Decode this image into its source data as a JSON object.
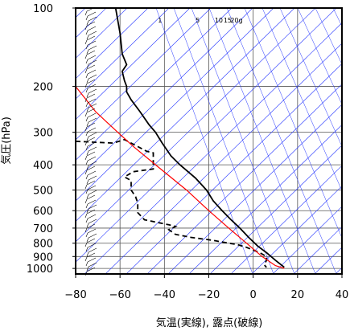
{
  "chart_data": {
    "type": "line",
    "title": "",
    "xlabel": "気温(実線), 露点(破線)",
    "ylabel": "気圧(hPa)",
    "xlim": [
      -80,
      40
    ],
    "ylim": [
      1050,
      100
    ],
    "y_scale": "log",
    "x_ticks": [
      -80,
      -60,
      -40,
      -20,
      0,
      20,
      40
    ],
    "x_tick_labels": [
      "−80",
      "−60",
      "−40",
      "−20",
      "0",
      "20",
      "40"
    ],
    "y_ticks": [
      100,
      200,
      300,
      400,
      500,
      600,
      700,
      800,
      900,
      1000
    ],
    "y_tick_labels": [
      "100",
      "200",
      "300",
      "400",
      "500",
      "600",
      "700",
      "800",
      "900",
      "1000"
    ],
    "mixing_ratio_labels": [
      {
        "text": "1",
        "x": -42
      },
      {
        "text": "5",
        "x": -25
      },
      {
        "text": "10",
        "x": -15.5
      },
      {
        "text": "15",
        "x": -11.5
      },
      {
        "text": "20g",
        "x": -7.5
      }
    ],
    "grid": true,
    "series": [
      {
        "style": "solid",
        "color": "#000000",
        "points": [
          [
            -62,
            100
          ],
          [
            -60,
            125
          ],
          [
            -59,
            150
          ],
          [
            -57,
            165
          ],
          [
            -59,
            175
          ],
          [
            -58,
            190
          ],
          [
            -57,
            200
          ],
          [
            -57,
            210
          ],
          [
            -55,
            225
          ],
          [
            -51,
            250
          ],
          [
            -47,
            280
          ],
          [
            -44,
            300
          ],
          [
            -41,
            330
          ],
          [
            -37,
            370
          ],
          [
            -33,
            400
          ],
          [
            -26,
            450
          ],
          [
            -21,
            500
          ],
          [
            -18,
            550
          ],
          [
            -14,
            600
          ],
          [
            -10,
            650
          ],
          [
            -6,
            700
          ],
          [
            -2,
            760
          ],
          [
            2,
            820
          ],
          [
            6,
            870
          ],
          [
            10,
            930
          ],
          [
            14,
            990
          ]
        ]
      },
      {
        "style": "dashed",
        "color": "#000000",
        "points": [
          [
            -80,
            325
          ],
          [
            -63,
            330
          ],
          [
            -58,
            320
          ],
          [
            -48,
            355
          ],
          [
            -45,
            360
          ],
          [
            -45,
            415
          ],
          [
            -54,
            425
          ],
          [
            -56,
            435
          ],
          [
            -58,
            445
          ],
          [
            -55,
            460
          ],
          [
            -55,
            500
          ],
          [
            -53,
            530
          ],
          [
            -52,
            560
          ],
          [
            -52,
            610
          ],
          [
            -49,
            650
          ],
          [
            -38,
            680
          ],
          [
            -35,
            690
          ],
          [
            -38,
            710
          ],
          [
            -35,
            740
          ],
          [
            -28,
            760
          ],
          [
            -18,
            780
          ],
          [
            -11,
            800
          ],
          [
            -7,
            810
          ],
          [
            -3,
            830
          ],
          [
            3,
            870
          ],
          [
            6,
            900
          ],
          [
            6,
            930
          ],
          [
            5,
            970
          ],
          [
            6,
            990
          ]
        ]
      },
      {
        "style": "solid",
        "color": "#ff0000",
        "points": [
          [
            -80,
            200
          ],
          [
            -71,
            250
          ],
          [
            -61,
            300
          ],
          [
            -54,
            340
          ],
          [
            -44,
            400
          ],
          [
            -30,
            500
          ],
          [
            -20,
            600
          ],
          [
            -11,
            700
          ],
          [
            -3,
            800
          ],
          [
            4,
            900
          ],
          [
            10,
            975
          ],
          [
            14,
            1000
          ]
        ]
      }
    ]
  }
}
